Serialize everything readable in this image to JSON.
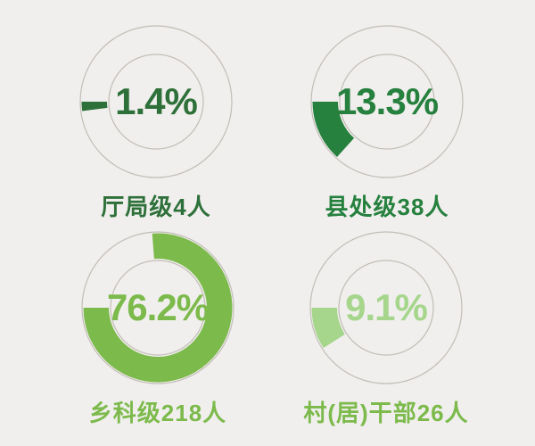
{
  "background_color": "#f0efed",
  "ring_outline_color": "#c3bdb6",
  "chart_data": {
    "type": "pie",
    "variant": "donut-small-multiples",
    "unit": "%",
    "legend_position": "below-each-donut",
    "grid": false,
    "categories": [
      "厅局级",
      "县处级",
      "乡科级",
      "村(居)干部"
    ],
    "values": [
      1.4,
      13.3,
      76.2,
      9.1
    ],
    "counts": [
      4,
      38,
      218,
      26
    ],
    "charts": [
      {
        "category": "厅局级",
        "count": 4,
        "percent": 1.4,
        "percent_label": "1.4%",
        "label": "厅局级4人",
        "color": "#2e7039",
        "label_color": "#2e7039"
      },
      {
        "category": "县处级",
        "count": 38,
        "percent": 13.3,
        "percent_label": "13.3%",
        "label": "县处级38人",
        "color": "#26803e",
        "label_color": "#26803e"
      },
      {
        "category": "乡科级",
        "count": 218,
        "percent": 76.2,
        "percent_label": "76.2%",
        "label": "乡科级218人",
        "color": "#7cba4b",
        "label_color": "#7cba4b"
      },
      {
        "category": "村(居)干部",
        "count": 26,
        "percent": 9.1,
        "percent_label": "9.1%",
        "label": "村(居)干部26人",
        "color": "#a6d58c",
        "label_color": "#7cba4b"
      }
    ]
  }
}
